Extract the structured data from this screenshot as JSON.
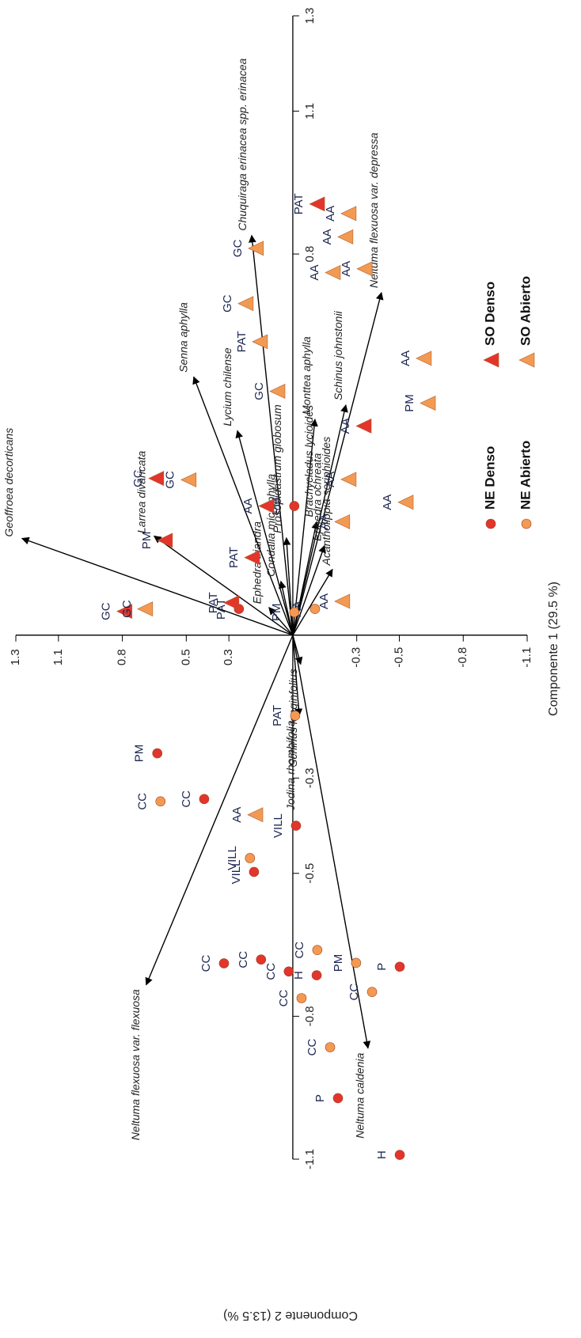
{
  "chart_data": {
    "type": "biplot",
    "x_label": "Componente 1 (29.5 %)",
    "y_label": "Componente 2 (13.5 %)",
    "xlim": [
      1.3,
      -1.1
    ],
    "ylim": [
      1.3,
      -1.1
    ],
    "xticks": [
      1.3,
      1.1,
      0.8,
      0.5,
      0.3,
      -0.3,
      -0.5,
      -0.8,
      -1.1
    ],
    "yticks": [
      1.3,
      1.1,
      0.8,
      -0.3,
      -0.5,
      -0.8,
      -1.1
    ],
    "series": [
      {
        "name": "NE Denso",
        "color": "#e2352b",
        "marker": "circle",
        "x": [
          0.636,
          0.416,
          0.323,
          0.182,
          -0.015,
          0.149,
          0.019,
          -0.112,
          -0.502,
          -0.212,
          -0.502,
          -0.007,
          0.253
        ],
        "y": [
          -0.248,
          -0.344,
          -0.689,
          -0.497,
          -0.4,
          -0.681,
          -0.706,
          -0.714,
          -0.696,
          -0.972,
          -1.091,
          0.271,
          0.055
        ],
        "labels": [
          "PM",
          "CC",
          "CC",
          "VILL",
          "VILL",
          "CC",
          "CC",
          "H",
          "P",
          "P",
          "H",
          "PM",
          "PAT"
        ]
      },
      {
        "name": "NE Abierto",
        "color": "#f39a52",
        "marker": "circle",
        "x": [
          0.621,
          0.201,
          -0.115,
          -0.041,
          -0.297,
          -0.372,
          -0.175,
          -0.011,
          -0.104,
          -0.007
        ],
        "y": [
          -0.349,
          -0.468,
          -0.661,
          -0.762,
          -0.688,
          -0.749,
          -0.865,
          -0.169,
          0.055,
          0.048
        ],
        "labels": [
          "CC",
          "VILL",
          "CC",
          "CC",
          "PM",
          "CC",
          "CC",
          "PAT",
          "AA",
          "PM"
        ]
      },
      {
        "name": "SO Denso",
        "color": "#e2352b",
        "marker": "triangle",
        "x": [
          0.643,
          0.602,
          0.193,
          0.29,
          0.792,
          0.126,
          -0.112,
          -0.331
        ],
        "y": [
          0.329,
          0.199,
          0.163,
          0.068,
          0.05,
          0.271,
          0.905,
          0.439
        ],
        "labels": [
          "GC",
          "PM",
          "PAT",
          "PAT",
          "GC",
          "AA",
          "PAT",
          "AA"
        ]
      },
      {
        "name": "SO Abierto",
        "color": "#f39a52",
        "marker": "triangle",
        "x": [
          0.491,
          0.695,
          0.178,
          0.223,
          0.156,
          0.074,
          0.175,
          -0.26,
          -0.245,
          -0.186,
          -0.335,
          -0.613,
          -0.632,
          -0.26,
          -0.23,
          -0.528,
          -0.23
        ],
        "y": [
          0.326,
          0.055,
          -0.377,
          0.696,
          0.616,
          0.512,
          0.812,
          0.885,
          0.836,
          0.761,
          0.769,
          0.581,
          0.487,
          0.327,
          0.238,
          0.279,
          0.071
        ],
        "labels": [
          "GC",
          "GC",
          "AA",
          "GC",
          "PAT",
          "GC",
          "GC",
          "AA",
          "AA",
          "AA",
          "AA",
          "AA",
          "PM",
          "AA",
          "AA",
          "AA",
          "AA"
        ]
      }
    ],
    "loadings": {
      "names": [
        "Geoffroea decorticans",
        "Larrea divaricata",
        "Ephedra triandra",
        "Senna aphylla",
        "Lycium chilense",
        "Chuquiraga erinacea spp. erinacea",
        "Condalia microphylla",
        "Prosopidastrum globosum",
        "Monttea aphylla",
        "Brachycladus lycioides",
        "Schinus johnstonii",
        "Neltuma flexuosa var. depressa",
        "Ephedra ochreata",
        "Acantholippia seriphioides",
        "Schinus longinfolius",
        "Jodina rhombifolia",
        "Neltuma flexuosa var. flexuosa",
        "Neltuma caldenia"
      ],
      "x": [
        1.271,
        0.651,
        0.112,
        0.465,
        0.26,
        0.193,
        0.056,
        0.03,
        -0.104,
        -0.112,
        -0.249,
        -0.416,
        -0.149,
        -0.186,
        -0.037,
        -0.03,
        0.688,
        -0.353
      ],
      "y": [
        0.203,
        0.208,
        0.058,
        0.542,
        0.429,
        0.839,
        0.113,
        0.204,
        0.453,
        0.238,
        0.483,
        0.719,
        0.188,
        0.138,
        -0.061,
        -0.169,
        -0.734,
        -0.867
      ]
    }
  }
}
